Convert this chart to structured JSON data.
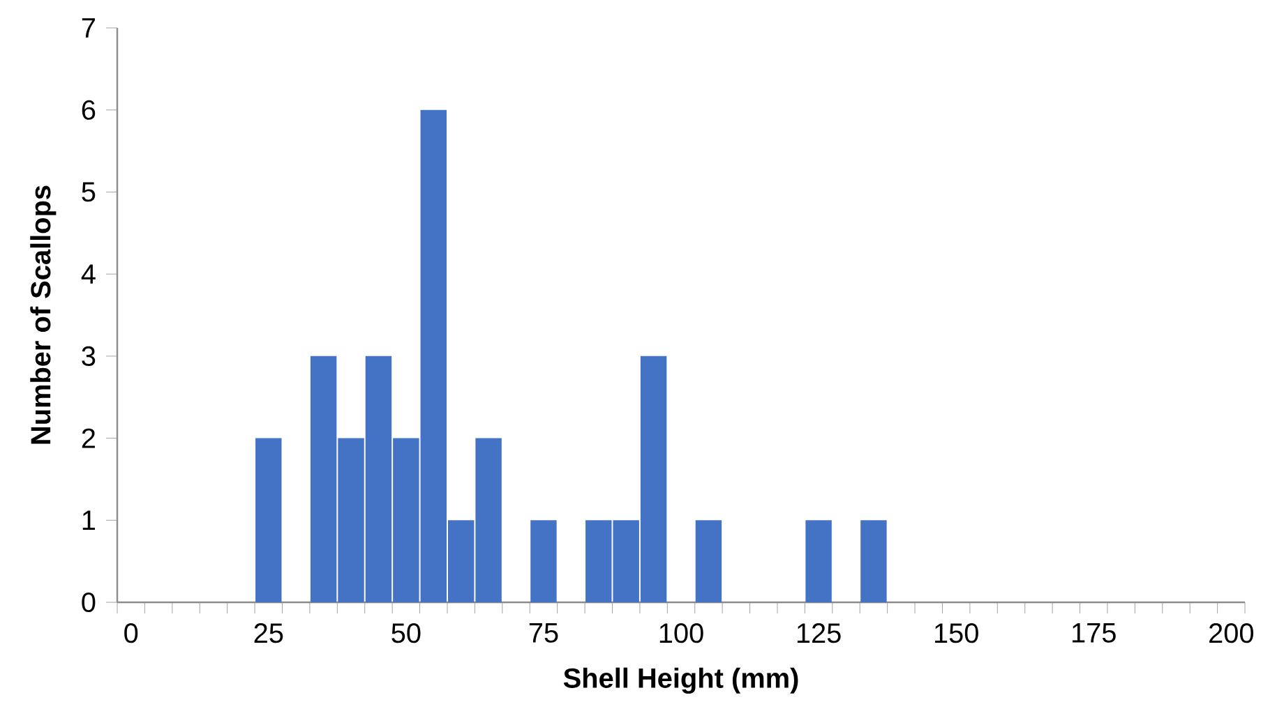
{
  "chart_data": {
    "type": "bar",
    "xlabel": "Shell Height (mm)",
    "ylabel": "Number of Scallops",
    "categories": [
      "0",
      null,
      null,
      null,
      null,
      "25",
      null,
      null,
      null,
      null,
      "50",
      null,
      null,
      null,
      null,
      "75",
      null,
      null,
      null,
      null,
      "100",
      null,
      null,
      null,
      null,
      "125",
      null,
      null,
      null,
      null,
      "150",
      null,
      null,
      null,
      null,
      "175",
      null,
      null,
      null,
      null,
      "200"
    ],
    "values": [
      0,
      0,
      0,
      0,
      0,
      2,
      0,
      3,
      2,
      3,
      2,
      6,
      1,
      2,
      0,
      1,
      0,
      1,
      1,
      3,
      0,
      1,
      0,
      0,
      0,
      1,
      0,
      1,
      0,
      0,
      0,
      0,
      0,
      0,
      0,
      0,
      0,
      0,
      0,
      0,
      0
    ],
    "color": "#4472c4",
    "ylim": [
      0,
      7
    ],
    "yticks": [
      0,
      1,
      2,
      3,
      4,
      5,
      6,
      7
    ]
  }
}
